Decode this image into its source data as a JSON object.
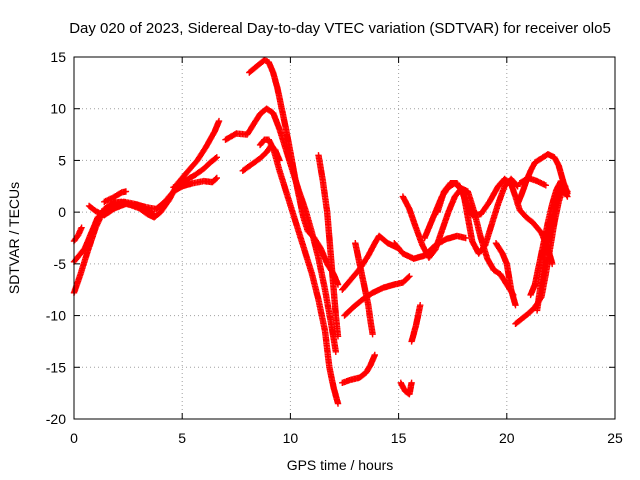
{
  "chart_data": {
    "type": "scatter",
    "title": "Day 020 of 2023, Sidereal Day-to-day VTEC variation (SDTVAR) for receiver olo5",
    "xlabel": "GPS time / hours",
    "ylabel": "SDTVAR / TECUs",
    "xlim": [
      0,
      25
    ],
    "ylim": [
      -20,
      15
    ],
    "xticks": [
      "0",
      "5",
      "10",
      "15",
      "20",
      "25"
    ],
    "yticks": [
      "15",
      "10",
      "5",
      "0",
      "-5",
      "-10",
      "-15",
      "-20"
    ],
    "grid": true,
    "marker": "plus",
    "color": "#ff0000",
    "series": [
      {
        "points": [
          [
            0.0,
            -7.8
          ],
          [
            0.3,
            -6.0
          ],
          [
            0.6,
            -4.0
          ],
          [
            1.0,
            -1.5
          ],
          [
            1.4,
            0.3
          ],
          [
            1.8,
            0.9
          ],
          [
            2.2,
            1.0
          ],
          [
            2.6,
            0.7
          ],
          [
            3.0,
            0.4
          ],
          [
            3.4,
            -0.2
          ],
          [
            3.7,
            -0.5
          ],
          [
            4.0,
            0.0
          ],
          [
            4.4,
            1.2
          ],
          [
            4.8,
            2.8
          ],
          [
            5.2,
            3.8
          ],
          [
            5.7,
            5.0
          ],
          [
            6.1,
            6.3
          ],
          [
            6.5,
            7.8
          ],
          [
            6.7,
            8.8
          ]
        ]
      },
      {
        "points": [
          [
            0.0,
            -4.8
          ],
          [
            0.5,
            -3.5
          ],
          [
            0.8,
            -2.0
          ],
          [
            1.1,
            -0.5
          ],
          [
            1.4,
            0.1
          ],
          [
            1.8,
            0.5
          ],
          [
            2.3,
            1.0
          ],
          [
            2.8,
            0.8
          ],
          [
            3.3,
            0.5
          ],
          [
            3.8,
            0.3
          ],
          [
            4.2,
            1.0
          ],
          [
            4.6,
            2.0
          ],
          [
            5.0,
            2.5
          ],
          [
            5.5,
            2.8
          ],
          [
            6.0,
            3.0
          ],
          [
            6.4,
            2.9
          ],
          [
            6.6,
            3.3
          ]
        ]
      },
      {
        "points": [
          [
            0.0,
            -2.8
          ],
          [
            0.2,
            -2.2
          ],
          [
            0.35,
            -1.5
          ]
        ]
      },
      {
        "points": [
          [
            0.7,
            0.6
          ],
          [
            1.0,
            0.1
          ],
          [
            1.4,
            -0.3
          ],
          [
            1.9,
            0.4
          ],
          [
            2.4,
            0.8
          ],
          [
            2.9,
            0.6
          ],
          [
            3.4,
            0.1
          ],
          [
            3.7,
            -0.2
          ]
        ]
      },
      {
        "points": [
          [
            1.4,
            1.0
          ],
          [
            1.8,
            1.4
          ],
          [
            2.2,
            1.9
          ],
          [
            2.4,
            2.0
          ]
        ]
      },
      {
        "points": [
          [
            4.6,
            2.4
          ],
          [
            5.1,
            3.0
          ],
          [
            5.6,
            3.6
          ],
          [
            6.0,
            4.2
          ],
          [
            6.3,
            4.8
          ],
          [
            6.6,
            5.3
          ]
        ]
      },
      {
        "points": [
          [
            7.0,
            7.0
          ],
          [
            7.5,
            7.6
          ],
          [
            8.0,
            7.5
          ],
          [
            8.3,
            8.5
          ],
          [
            8.6,
            9.5
          ],
          [
            8.9,
            10.0
          ],
          [
            9.2,
            9.6
          ],
          [
            9.5,
            8.0
          ],
          [
            9.8,
            6.0
          ],
          [
            10.1,
            4.0
          ],
          [
            10.4,
            2.0
          ],
          [
            10.7,
            0.2
          ],
          [
            11.0,
            -2.0
          ],
          [
            11.3,
            -4.5
          ],
          [
            11.6,
            -7.5
          ],
          [
            11.9,
            -11.0
          ],
          [
            12.1,
            -13.5
          ]
        ]
      },
      {
        "points": [
          [
            8.1,
            13.5
          ],
          [
            8.5,
            14.2
          ],
          [
            8.8,
            14.7
          ],
          [
            9.0,
            14.5
          ],
          [
            9.2,
            13.5
          ],
          [
            9.4,
            12.0
          ],
          [
            9.6,
            10.0
          ],
          [
            9.8,
            8.0
          ],
          [
            10.0,
            5.8
          ],
          [
            10.2,
            3.5
          ],
          [
            10.4,
            1.5
          ],
          [
            10.6,
            -0.5
          ],
          [
            10.8,
            -1.8
          ],
          [
            11.1,
            -2.5
          ],
          [
            11.4,
            -3.5
          ],
          [
            11.7,
            -5.0
          ],
          [
            12.0,
            -6.0
          ],
          [
            12.2,
            -7.0
          ]
        ]
      },
      {
        "points": [
          [
            7.8,
            4.0
          ],
          [
            8.2,
            4.6
          ],
          [
            8.6,
            5.2
          ],
          [
            8.9,
            5.8
          ],
          [
            9.1,
            6.4
          ],
          [
            9.3,
            6.0
          ],
          [
            9.5,
            5.0
          ]
        ]
      },
      {
        "points": [
          [
            8.6,
            6.5
          ],
          [
            8.8,
            7.0
          ],
          [
            9.0,
            7.0
          ],
          [
            9.2,
            6.2
          ],
          [
            9.5,
            4.0
          ],
          [
            9.8,
            2.0
          ],
          [
            10.1,
            0.0
          ],
          [
            10.4,
            -2.0
          ],
          [
            10.7,
            -4.0
          ],
          [
            11.0,
            -6.0
          ],
          [
            11.3,
            -8.5
          ],
          [
            11.6,
            -11.5
          ],
          [
            11.8,
            -15.0
          ],
          [
            12.0,
            -17.0
          ],
          [
            12.2,
            -18.5
          ]
        ]
      },
      {
        "points": [
          [
            11.3,
            5.5
          ],
          [
            11.5,
            3.0
          ],
          [
            11.7,
            0.0
          ],
          [
            11.8,
            -2.5
          ],
          [
            11.9,
            -5.0
          ],
          [
            12.0,
            -7.5
          ],
          [
            12.1,
            -10.0
          ],
          [
            12.2,
            -12.0
          ]
        ]
      },
      {
        "points": [
          [
            12.4,
            -7.5
          ],
          [
            12.8,
            -6.5
          ],
          [
            13.2,
            -5.5
          ],
          [
            13.6,
            -4.2
          ],
          [
            13.9,
            -3.0
          ],
          [
            14.1,
            -2.3
          ],
          [
            14.5,
            -3.0
          ],
          [
            15.0,
            -3.5
          ]
        ]
      },
      {
        "points": [
          [
            12.5,
            -10.0
          ],
          [
            12.9,
            -9.2
          ],
          [
            13.3,
            -8.5
          ],
          [
            13.8,
            -7.8
          ],
          [
            14.3,
            -7.3
          ],
          [
            14.8,
            -7.0
          ],
          [
            15.2,
            -6.8
          ],
          [
            15.5,
            -6.2
          ]
        ]
      },
      {
        "points": [
          [
            13.0,
            -3.0
          ],
          [
            13.2,
            -5.0
          ],
          [
            13.4,
            -7.0
          ],
          [
            13.6,
            -9.0
          ],
          [
            13.7,
            -10.5
          ],
          [
            13.8,
            -11.8
          ]
        ]
      },
      {
        "points": [
          [
            12.4,
            -16.5
          ],
          [
            12.8,
            -16.2
          ],
          [
            13.2,
            -16.0
          ],
          [
            13.5,
            -15.5
          ],
          [
            13.7,
            -14.8
          ],
          [
            13.9,
            -13.8
          ]
        ]
      },
      {
        "points": [
          [
            15.1,
            -16.5
          ],
          [
            15.3,
            -17.3
          ],
          [
            15.5,
            -17.6
          ],
          [
            15.6,
            -16.5
          ]
        ]
      },
      {
        "points": [
          [
            15.6,
            -12.5
          ],
          [
            15.8,
            -11.0
          ],
          [
            16.0,
            -9.0
          ]
        ]
      },
      {
        "points": [
          [
            14.8,
            -3.0
          ],
          [
            15.2,
            -4.0
          ],
          [
            15.7,
            -4.5
          ],
          [
            16.2,
            -4.2
          ],
          [
            16.7,
            -3.2
          ],
          [
            17.2,
            -2.6
          ],
          [
            17.7,
            -2.3
          ],
          [
            18.1,
            -2.5
          ]
        ]
      },
      {
        "points": [
          [
            15.2,
            1.5
          ],
          [
            15.5,
            0.3
          ],
          [
            15.8,
            -1.5
          ],
          [
            16.1,
            -3.2
          ],
          [
            16.4,
            -4.4
          ],
          [
            16.7,
            -3.6
          ],
          [
            17.0,
            -1.8
          ],
          [
            17.3,
            0.0
          ],
          [
            17.6,
            1.5
          ],
          [
            17.9,
            2.3
          ],
          [
            18.2,
            2.0
          ],
          [
            18.5,
            0.0
          ],
          [
            18.8,
            -2.5
          ],
          [
            19.1,
            -4.5
          ],
          [
            19.4,
            -5.6
          ],
          [
            19.7,
            -6.0
          ],
          [
            20.0,
            -7.0
          ],
          [
            20.3,
            -8.0
          ]
        ]
      },
      {
        "points": [
          [
            16.2,
            -2.5
          ],
          [
            16.6,
            -0.5
          ],
          [
            17.0,
            1.5
          ],
          [
            17.3,
            2.4
          ],
          [
            17.6,
            2.8
          ],
          [
            17.9,
            2.2
          ],
          [
            18.1,
            1.0
          ],
          [
            18.4,
            -0.3
          ],
          [
            18.8,
            -0.2
          ],
          [
            19.2,
            1.0
          ],
          [
            19.6,
            2.5
          ],
          [
            19.9,
            3.2
          ],
          [
            20.2,
            2.7
          ],
          [
            20.4,
            1.5
          ],
          [
            20.6,
            0.2
          ],
          [
            20.9,
            -0.5
          ],
          [
            21.2,
            -1.0
          ],
          [
            21.6,
            -2.0
          ],
          [
            21.9,
            -3.5
          ],
          [
            22.1,
            -5.0
          ]
        ]
      },
      {
        "points": [
          [
            16.8,
            0.0
          ],
          [
            17.1,
            2.0
          ],
          [
            17.4,
            2.8
          ],
          [
            17.7,
            2.8
          ],
          [
            18.0,
            1.8
          ],
          [
            18.2,
            -0.5
          ],
          [
            18.4,
            -2.8
          ],
          [
            18.7,
            -4.0
          ],
          [
            19.0,
            -3.2
          ],
          [
            19.3,
            -1.2
          ],
          [
            19.6,
            0.8
          ],
          [
            19.9,
            2.5
          ],
          [
            20.2,
            3.2
          ],
          [
            20.5,
            2.5
          ]
        ]
      },
      {
        "points": [
          [
            19.5,
            -3.0
          ],
          [
            19.8,
            -4.0
          ],
          [
            20.0,
            -5.0
          ],
          [
            20.2,
            -7.5
          ],
          [
            20.4,
            -9.0
          ]
        ]
      },
      {
        "points": [
          [
            20.4,
            -10.8
          ],
          [
            20.7,
            -10.3
          ],
          [
            21.0,
            -9.8
          ],
          [
            21.3,
            -9.2
          ],
          [
            21.6,
            -8.2
          ],
          [
            21.8,
            -6.0
          ],
          [
            22.0,
            -3.5
          ],
          [
            22.2,
            -1.0
          ],
          [
            22.4,
            1.0
          ],
          [
            22.6,
            2.3
          ],
          [
            22.8,
            1.5
          ]
        ]
      },
      {
        "points": [
          [
            20.5,
            0.8
          ],
          [
            20.7,
            1.8
          ],
          [
            20.9,
            3.0
          ],
          [
            21.1,
            4.0
          ],
          [
            21.3,
            4.8
          ],
          [
            21.6,
            5.2
          ],
          [
            21.9,
            5.6
          ],
          [
            22.2,
            5.3
          ],
          [
            22.4,
            4.5
          ],
          [
            22.6,
            3.0
          ],
          [
            22.8,
            1.8
          ]
        ]
      },
      {
        "points": [
          [
            21.1,
            -8.0
          ],
          [
            21.3,
            -7.0
          ],
          [
            21.5,
            -5.0
          ],
          [
            21.7,
            -3.0
          ],
          [
            21.9,
            -1.0
          ],
          [
            22.1,
            0.8
          ],
          [
            22.3,
            2.2
          ],
          [
            22.5,
            3.0
          ],
          [
            22.7,
            2.5
          ]
        ]
      },
      {
        "points": [
          [
            21.4,
            -9.5
          ],
          [
            21.6,
            -6.5
          ],
          [
            21.8,
            -3.5
          ],
          [
            22.0,
            -1.5
          ],
          [
            22.2,
            0.5
          ],
          [
            22.4,
            2.0
          ],
          [
            22.6,
            2.6
          ],
          [
            22.8,
            2.0
          ]
        ]
      },
      {
        "points": [
          [
            20.6,
            2.8
          ],
          [
            21.0,
            3.3
          ],
          [
            21.4,
            3.0
          ],
          [
            21.8,
            2.6
          ]
        ]
      }
    ]
  }
}
